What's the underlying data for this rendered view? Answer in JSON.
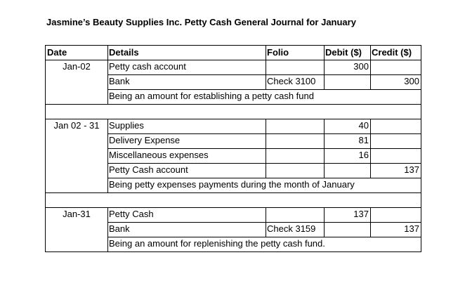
{
  "title": "Jasmine’s Beauty Supplies Inc. Petty Cash General Journal for January",
  "table": {
    "header": [
      "Date",
      "Details",
      "Folio",
      "Debit ($)",
      "Credit ($)"
    ],
    "entries": [
      {
        "date": "Jan-02",
        "lines": [
          {
            "details": "Petty cash account",
            "debit": 300
          },
          {
            "details": "Bank",
            "folio": "Check 3100",
            "credit": 300
          }
        ],
        "narration": "Being an amount for establishing a petty cash fund"
      },
      {
        "date": "Jan 02 - 31",
        "lines": [
          {
            "details": "Supplies",
            "debit": 40
          },
          {
            "details": "Delivery Expense",
            "debit": 81
          },
          {
            "details": "Miscellaneous expenses",
            "debit": 16
          },
          {
            "details": "Petty Cash account",
            "credit": 137
          }
        ],
        "narration": "Being petty expenses payments during the month of January"
      },
      {
        "date": "Jan-31",
        "lines": [
          {
            "details": "Petty Cash",
            "debit": 137
          },
          {
            "details": "Bank",
            "folio": "Check 3159",
            "credit": 137
          }
        ],
        "narration": "Being an amount for replenishing the petty cash fund."
      }
    ]
  }
}
